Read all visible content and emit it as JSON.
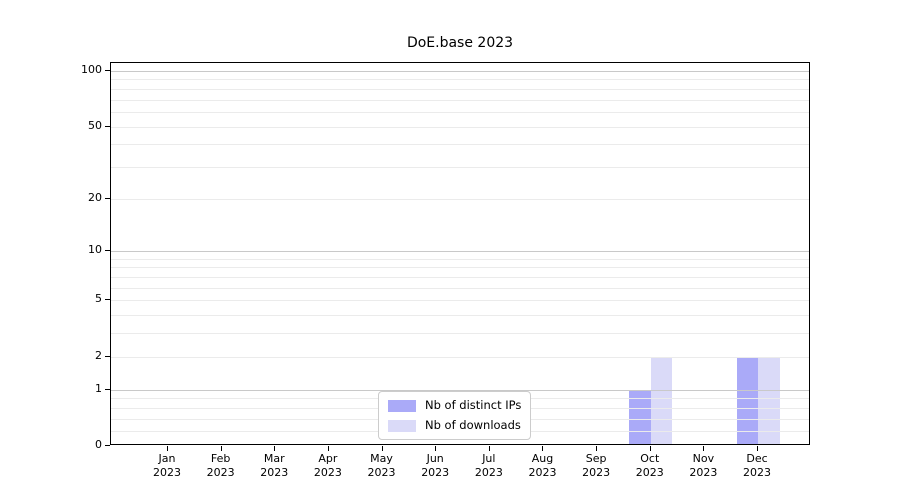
{
  "chart_data": {
    "type": "bar",
    "title": "DoE.base 2023",
    "categories": [
      "Jan 2023",
      "Feb 2023",
      "Mar 2023",
      "Apr 2023",
      "May 2023",
      "Jun 2023",
      "Jul 2023",
      "Aug 2023",
      "Sep 2023",
      "Oct 2023",
      "Nov 2023",
      "Dec 2023"
    ],
    "series": [
      {
        "name": "Nb of distinct IPs",
        "color": "#aaaaf8",
        "values": [
          0,
          0,
          0,
          0,
          0,
          0,
          0,
          0,
          0,
          1,
          0,
          2
        ]
      },
      {
        "name": "Nb of downloads",
        "color": "#dadaf8",
        "values": [
          0,
          0,
          0,
          0,
          0,
          0,
          0,
          0,
          0,
          2,
          0,
          2
        ]
      }
    ],
    "yscale": "log1p",
    "ylim": [
      0,
      110
    ],
    "y_tick_labels": [
      0,
      1,
      2,
      5,
      10,
      20,
      50,
      100
    ],
    "grid_major_lines": [
      1,
      10,
      100
    ],
    "grid_minor_lines": [
      0.2,
      0.4,
      0.6,
      0.8,
      2,
      3,
      4,
      5,
      6,
      7,
      8,
      9,
      20,
      30,
      40,
      50,
      60,
      70,
      80,
      90
    ],
    "legend_position": "lower center",
    "grid": "horizontal"
  },
  "colors": {
    "axis": "#000000",
    "grid_major": "#c9c9c9",
    "grid_minor": "#ebebeb",
    "background": "#ffffff",
    "text": "#000000"
  }
}
